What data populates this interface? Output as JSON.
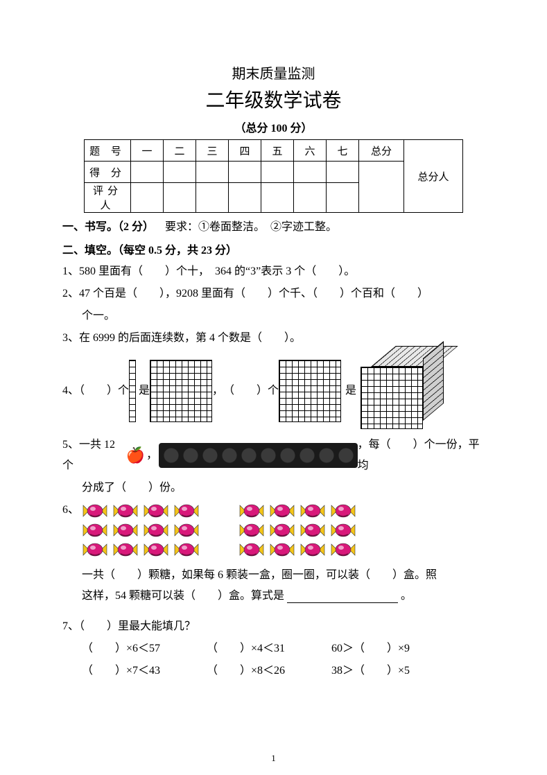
{
  "header": {
    "subtitle": "期末质量监测",
    "title": "二年级数学试卷",
    "total": "（总分 100 分）"
  },
  "score_table": {
    "rows": [
      "题  号",
      "得  分",
      "评分人"
    ],
    "cols": [
      "一",
      "二",
      "三",
      "四",
      "五",
      "六",
      "七"
    ],
    "total_label": "总分",
    "person_label": "总分人"
  },
  "s1": {
    "heading": "一、书写。（2 分）",
    "req": "要求：①卷面整洁。　②字迹工整。"
  },
  "s2": {
    "heading": "二、填空。（每空 0.5 分，共 23 分）"
  },
  "q1": {
    "a": "1、580 里面有（　　）个十，　364 的“3”表示 3 个（　　）。"
  },
  "q2": {
    "a": "2、47 个百是（　　），9208 里面有（　　）个千、（　　）个百和（　　）",
    "b": "个一。"
  },
  "q3": {
    "a": "3、在 6999 的后面连续数，第 4 个数是（　　）。"
  },
  "q4": {
    "pre": "4、（　　）个",
    "mid1": "是",
    "mid2": "，　（　　）个",
    "mid3": "是"
  },
  "q5": {
    "pre": "5、一共 12 个",
    "mid": "，每（　　）个一份，平均",
    "end": "分成了（　　）份。"
  },
  "q6": {
    "num": "6、",
    "line1": "一共（　　）颗糖，如果每 6 颗装一盒，圈一圈，可以装（　　）盒。照",
    "line2": "这样，54 颗糖可以装（　　）盒。算式是",
    "line2_end": "。"
  },
  "q7": {
    "head": "7、（　　）里最大能填几？",
    "r1a": "（　　）×6＜57",
    "r1b": "（　　）×4＜31",
    "r1c": "60＞（　　）×9",
    "r2a": "（　　）×7＜43",
    "r2b": "（　　）×8＜26",
    "r2c": "38＞（　　）×5"
  },
  "candy": {
    "rows": 3,
    "groups_per_row": 2,
    "per_group": 4,
    "colors": {
      "body": "#d8187a",
      "wrap": "#f5c518",
      "shadow": "#7a0d45"
    }
  },
  "page_number": "1",
  "style": {
    "font_body_pt": 16,
    "font_title_pt": 28,
    "font_subtitle_pt": 20,
    "text_color": "#000000",
    "bg_color": "#ffffff",
    "table_border_color": "#000000"
  }
}
